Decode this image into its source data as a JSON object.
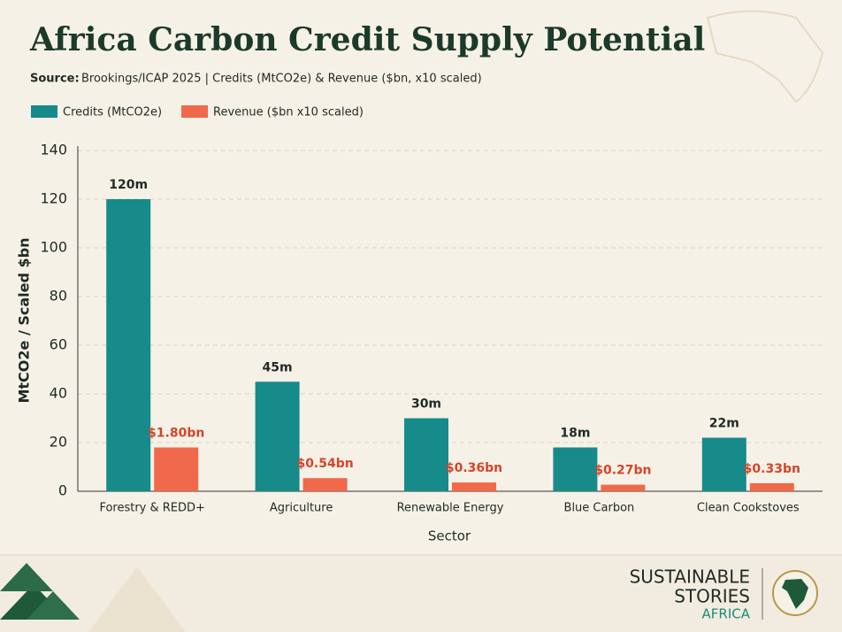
{
  "chart_data": {
    "type": "bar",
    "title": "Africa Carbon Credit Supply Potential",
    "source_label": "Source:",
    "subtitle": "Brookings/ICAP 2025 | Credits (MtCO2e) & Revenue ($bn, x10 scaled)",
    "xlabel": "Sector",
    "ylabel": "MtCO2e / Scaled $bn",
    "categories": [
      "Forestry & REDD+",
      "Agriculture",
      "Renewable Energy",
      "Blue Carbon",
      "Clean Cookstoves"
    ],
    "series": [
      {
        "name": "Credits (MtCO2e)",
        "color": "#178a8a",
        "values": [
          120,
          45,
          30,
          18,
          22
        ],
        "value_labels": [
          "120m",
          "45m",
          "30m",
          "18m",
          "22m"
        ],
        "label_color": "#1f2a24"
      },
      {
        "name": "Revenue ($bn x10 scaled)",
        "color": "#f0694a",
        "values": [
          18,
          5.4,
          3.6,
          2.7,
          3.3
        ],
        "value_labels": [
          "$1.80bn",
          "$0.54bn",
          "$0.36bn",
          "$0.27bn",
          "$0.33bn"
        ],
        "label_color": "#d4452a"
      }
    ],
    "ylim": [
      0,
      140
    ],
    "yticks": [
      0,
      20,
      40,
      60,
      80,
      100,
      120,
      140
    ],
    "grid": true,
    "legend": "top-left"
  },
  "brand": {
    "line1": "SUSTAINABLE",
    "line2": "STORIES",
    "line3": "AFRICA"
  }
}
